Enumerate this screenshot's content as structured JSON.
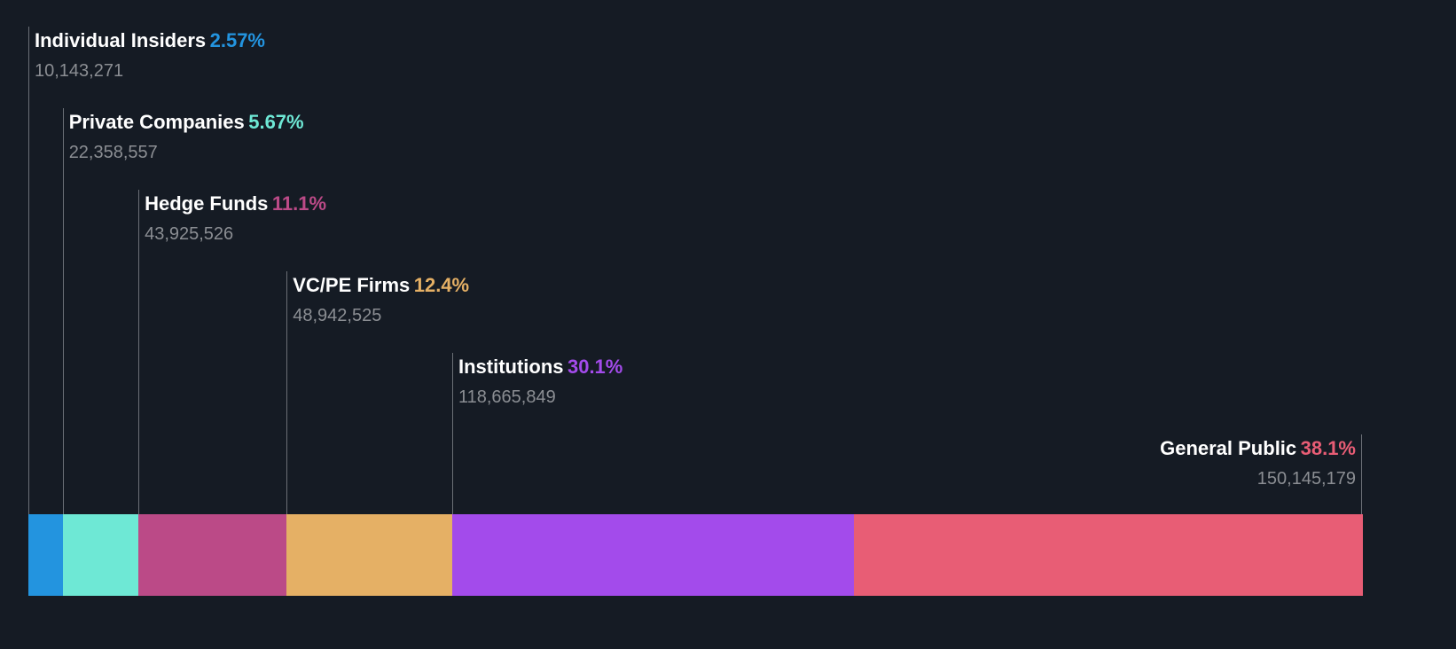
{
  "chart_data": {
    "type": "bar",
    "subtype": "stacked-horizontal-100",
    "title": "",
    "categories": [
      "Individual Insiders",
      "Private Companies",
      "Hedge Funds",
      "VC/PE Firms",
      "Institutions",
      "General Public"
    ],
    "percent_labels": [
      "2.57%",
      "5.67%",
      "11.1%",
      "12.4%",
      "30.1%",
      "38.1%"
    ],
    "values": [
      2.57,
      5.67,
      11.1,
      12.4,
      30.1,
      38.1
    ],
    "shares_labels": [
      "10,143,271",
      "22,358,557",
      "43,925,526",
      "48,942,525",
      "118,665,849",
      "150,145,179"
    ],
    "colors": [
      "#2394df",
      "#6ee8d5",
      "#bb4a87",
      "#e5b065",
      "#a34beb",
      "#e85d75"
    ],
    "legend": "none",
    "grid": false
  }
}
